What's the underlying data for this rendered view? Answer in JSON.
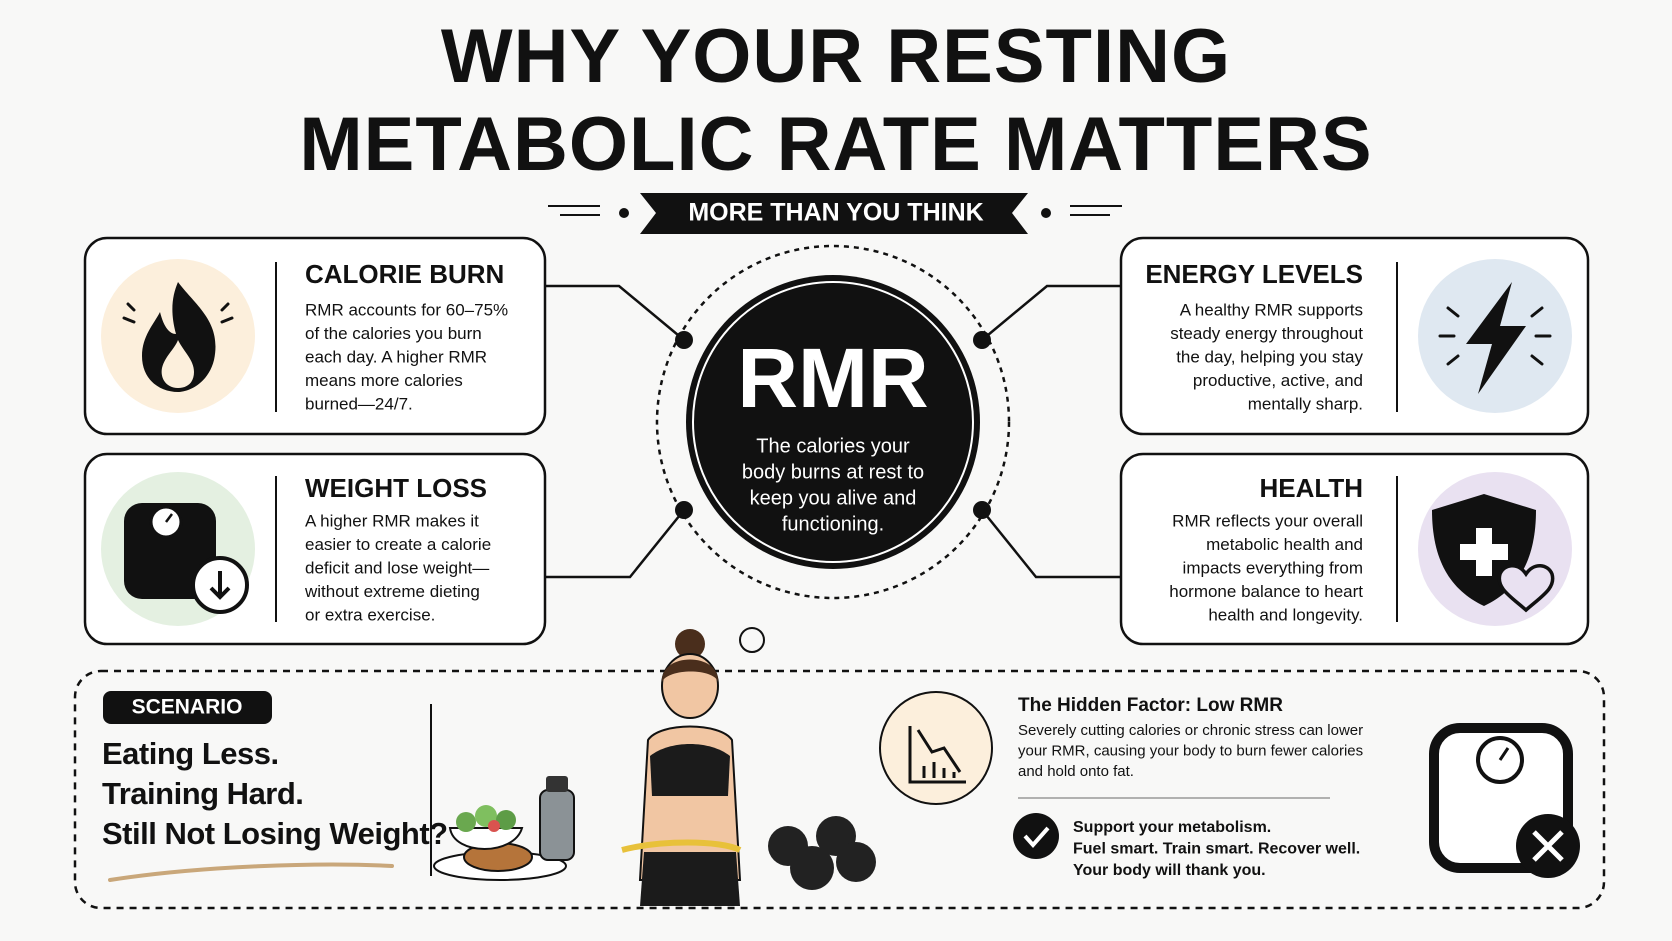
{
  "header": {
    "title": [
      "WHY YOUR RESTING",
      "METABOLIC RATE MATTERS"
    ],
    "subtitle": "MORE THAN YOU THINK"
  },
  "center": {
    "label": "RMR",
    "description": [
      "The calories your",
      "body burns at rest to",
      "keep you alive and",
      "functioning."
    ]
  },
  "cards": [
    {
      "title": "CALORIE BURN",
      "lines": [
        "RMR accounts for 60–75%",
        "of the calories you burn",
        "each day. A higher RMR",
        "means more calories",
        "burned—24/7."
      ]
    },
    {
      "title": "WEIGHT LOSS",
      "lines": [
        "A higher RMR makes it",
        "easier to create a calorie",
        "deficit and lose weight—",
        "without extreme dieting",
        "or extra exercise."
      ]
    },
    {
      "title": "ENERGY LEVELS",
      "lines": [
        "A healthy RMR supports",
        "steady energy throughout",
        "the day, helping you stay",
        "productive, active, and",
        "mentally sharp."
      ]
    },
    {
      "title": "HEALTH",
      "lines": [
        "RMR reflects your overall",
        "metabolic health and",
        "impacts everything from",
        "hormone balance to heart",
        "health and longevity."
      ]
    }
  ],
  "scenario": {
    "tag": "SCENARIO",
    "lines": [
      "Eating Less.",
      "Training Hard.",
      "Still Not Losing Weight?"
    ]
  },
  "hidden_factor": {
    "title": "The Hidden Factor: Low RMR",
    "lines": [
      "Severely cutting calories or chronic stress can lower",
      "your RMR, causing your body to burn fewer calories",
      "and hold onto fat."
    ]
  },
  "support": {
    "lines": [
      "Support your metabolism.",
      "Fuel smart. Train smart. Recover well.",
      "Your body will thank you."
    ]
  }
}
